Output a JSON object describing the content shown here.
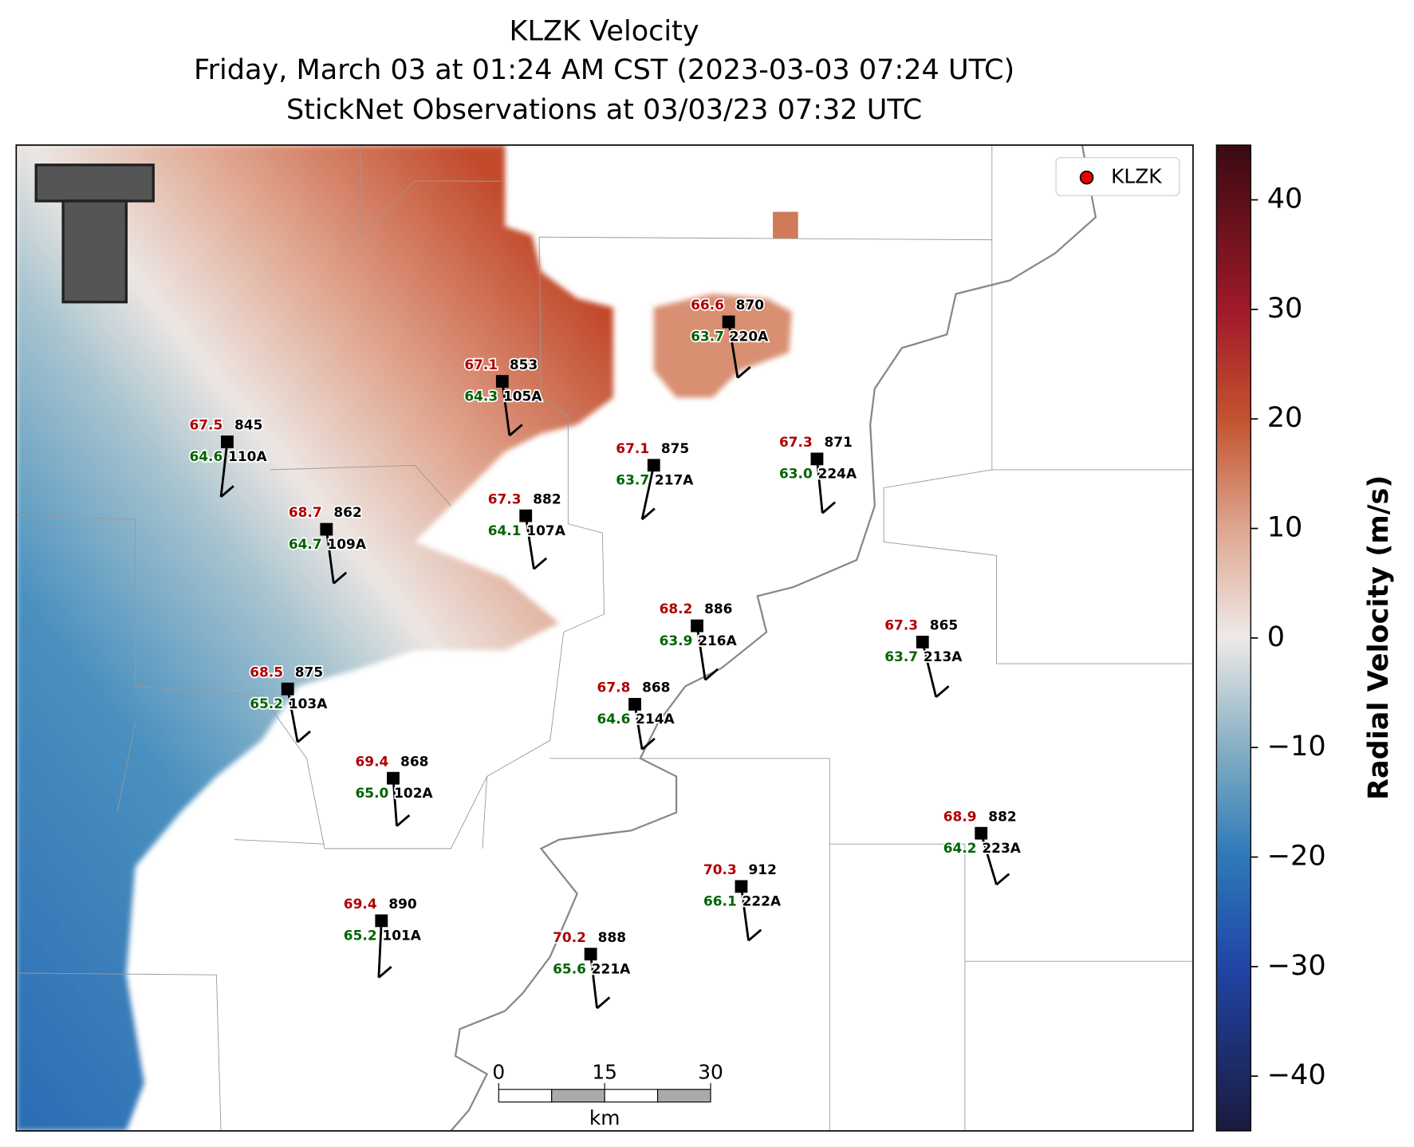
{
  "title": [
    "KLZK Velocity",
    "Friday, March 03 at 01:24 AM CST (2023-03-03 07:24 UTC)",
    "StickNet Observations at 03/03/23 07:32 UTC"
  ],
  "legend": [
    "KLZK"
  ],
  "colorbar": {
    "label": "Radial Velocity (m/s)",
    "ylim": [
      -45,
      45
    ],
    "yticks": [
      {
        "value": -40,
        "label": "−40"
      },
      {
        "value": -30,
        "label": "−30"
      },
      {
        "value": -20,
        "label": "−20"
      },
      {
        "value": -10,
        "label": "−10"
      },
      0,
      10,
      20,
      30,
      40
    ]
  },
  "scale_bar": {
    "label": "km",
    "xlim": [
      0,
      30
    ],
    "xticks": [
      0,
      15,
      30
    ]
  },
  "stations": [
    {
      "id": "110A",
      "temp": "67.5",
      "dewpoint": "64.6",
      "pressure": "845"
    },
    {
      "id": "109A",
      "temp": "68.7",
      "dewpoint": "64.7",
      "pressure": "862"
    },
    {
      "id": "105A",
      "temp": "67.1",
      "dewpoint": "64.3",
      "pressure": "853"
    },
    {
      "id": "220A",
      "temp": "66.6",
      "dewpoint": "63.7",
      "pressure": "870"
    },
    {
      "id": "107A",
      "temp": "67.3",
      "dewpoint": "64.1",
      "pressure": "882"
    },
    {
      "id": "217A",
      "temp": "67.1",
      "dewpoint": "63.7",
      "pressure": "875"
    },
    {
      "id": "224A",
      "temp": "67.3",
      "dewpoint": "63.0",
      "pressure": "871"
    },
    {
      "id": "216A",
      "temp": "68.2",
      "dewpoint": "63.9",
      "pressure": "886"
    },
    {
      "id": "213A",
      "temp": "67.3",
      "dewpoint": "63.7",
      "pressure": "865"
    },
    {
      "id": "103A",
      "temp": "68.5",
      "dewpoint": "65.2",
      "pressure": "875"
    },
    {
      "id": "214A",
      "temp": "67.8",
      "dewpoint": "64.6",
      "pressure": "868"
    },
    {
      "id": "102A",
      "temp": "69.4",
      "dewpoint": "65.0",
      "pressure": "868"
    },
    {
      "id": "223A",
      "temp": "68.9",
      "dewpoint": "64.2",
      "pressure": "882"
    },
    {
      "id": "222A",
      "temp": "70.3",
      "dewpoint": "66.1",
      "pressure": "912"
    },
    {
      "id": "101A",
      "temp": "69.4",
      "dewpoint": "65.2",
      "pressure": "890"
    },
    {
      "id": "221A",
      "temp": "70.2",
      "dewpoint": "65.6",
      "pressure": "888"
    }
  ]
}
